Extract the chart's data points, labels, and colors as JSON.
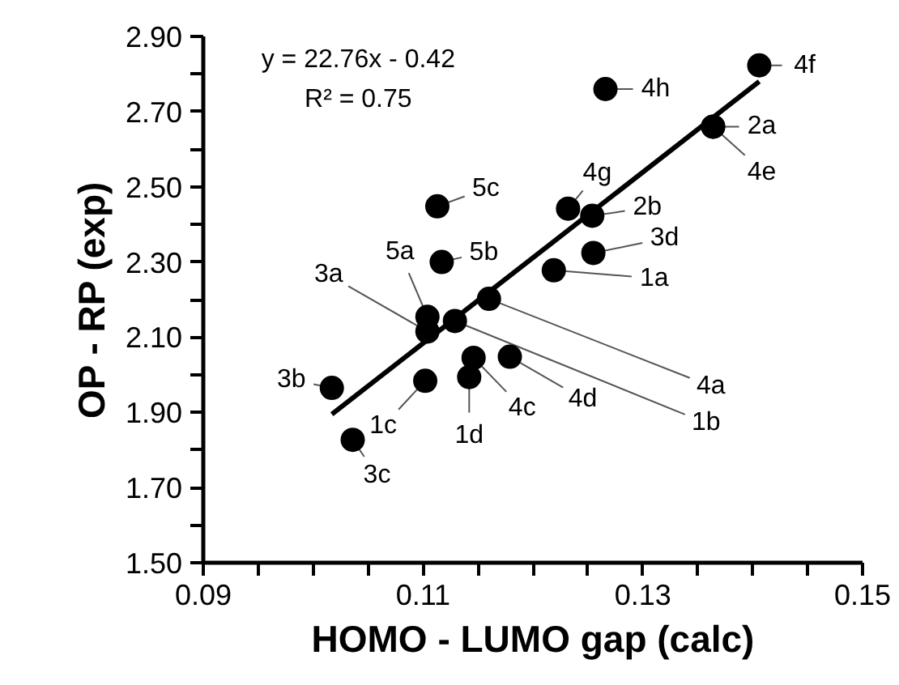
{
  "chart_data": {
    "type": "scatter",
    "xlabel": "HOMO - LUMO gap (calc)",
    "ylabel": "OP - RP (exp)",
    "xlim": [
      0.09,
      0.15
    ],
    "ylim": [
      1.5,
      2.9
    ],
    "xticks": [
      0.09,
      {
        "value": 0.095,
        "label": null
      },
      {
        "value": 0.1,
        "label": null
      },
      {
        "value": 0.105,
        "label": null
      },
      0.11,
      {
        "value": 0.115,
        "label": null
      },
      {
        "value": 0.12,
        "label": null
      },
      {
        "value": 0.125,
        "label": null
      },
      0.13,
      {
        "value": 0.135,
        "label": null
      },
      {
        "value": 0.14,
        "label": null
      },
      {
        "value": 0.145,
        "label": null
      },
      0.15
    ],
    "yticks": [
      {
        "value": 1.5,
        "label": "1.50"
      },
      {
        "value": 1.6,
        "label": null
      },
      {
        "value": 1.7,
        "label": "1.70"
      },
      {
        "value": 1.8,
        "label": null
      },
      {
        "value": 1.9,
        "label": "1.90"
      },
      {
        "value": 2.0,
        "label": null
      },
      {
        "value": 2.1,
        "label": "2.10"
      },
      {
        "value": 2.2,
        "label": null
      },
      {
        "value": 2.3,
        "label": "2.30"
      },
      {
        "value": 2.4,
        "label": null
      },
      {
        "value": 2.5,
        "label": "2.50"
      },
      {
        "value": 2.6,
        "label": null
      },
      {
        "value": 2.7,
        "label": "2.70"
      },
      {
        "value": 2.8,
        "label": null
      },
      {
        "value": 2.9,
        "label": "2.90"
      }
    ],
    "grid": false,
    "annotations": [
      "y = 22.76x - 0.42",
      "R² = 0.75",
      {
        "text": "4f",
        "x": 0.1406,
        "y": 2.823
      },
      {
        "text": "4h",
        "x": 0.1266,
        "y": 2.76
      },
      {
        "text": "2a",
        "x": 0.1364,
        "y": 2.66
      },
      {
        "text": "4e",
        "x": 0.1364,
        "y": 2.66
      },
      {
        "text": "4g",
        "x": 0.1232,
        "y": 2.442
      },
      {
        "text": "2b",
        "x": 0.1254,
        "y": 2.423
      },
      {
        "text": "3d",
        "x": 0.1255,
        "y": 2.324
      },
      {
        "text": "1a",
        "x": 0.1219,
        "y": 2.278
      },
      {
        "text": "4a",
        "x": 0.116,
        "y": 2.202
      },
      {
        "text": "5c",
        "x": 0.1113,
        "y": 2.448
      },
      {
        "text": "5b",
        "x": 0.1117,
        "y": 2.3
      },
      {
        "text": "5a",
        "x": 0.1104,
        "y": 2.154
      },
      {
        "text": "3a",
        "x": 0.1104,
        "y": 2.115
      },
      {
        "text": "1b",
        "x": 0.1129,
        "y": 2.143
      },
      {
        "text": "1c",
        "x": 0.1102,
        "y": 1.984
      },
      {
        "text": "4c",
        "x": 0.1146,
        "y": 2.045
      },
      {
        "text": "1d",
        "x": 0.1142,
        "y": 1.994
      },
      {
        "text": "4d",
        "x": 0.1179,
        "y": 2.048
      },
      {
        "text": "3b",
        "x": 0.1017,
        "y": 1.965
      },
      {
        "text": "3c",
        "x": 0.1036,
        "y": 1.827
      }
    ],
    "series": [
      {
        "color": "#000000",
        "marker": "circle",
        "x": [
          0.1406,
          0.1266,
          0.1364,
          0.1364,
          0.1232,
          0.1254,
          0.1255,
          0.1219,
          0.116,
          0.1113,
          0.1117,
          0.1104,
          0.1104,
          0.1129,
          0.1102,
          0.1146,
          0.1142,
          0.1179,
          0.1017,
          0.1036
        ],
        "values": [
          2.823,
          2.76,
          2.66,
          2.66,
          2.442,
          2.423,
          2.324,
          2.278,
          2.202,
          2.448,
          2.3,
          2.154,
          2.115,
          2.143,
          1.984,
          2.045,
          1.994,
          2.048,
          1.965,
          1.827
        ]
      },
      {
        "type": "line",
        "color": "#000000",
        "x": [
          0.1017,
          0.1406
        ],
        "values": [
          1.895,
          2.78
        ]
      }
    ]
  }
}
